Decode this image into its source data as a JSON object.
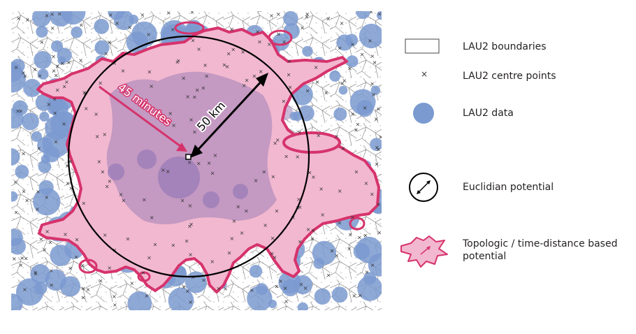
{
  "map": {
    "labels": {
      "euclidean_radius": "50 km",
      "time_distance": "45 minutes"
    },
    "colors": {
      "lau2_data": "#7b9ad0",
      "potential_fill": "#f2b8cf",
      "potential_outline": "#d6336c",
      "overlap": "#9f7fb8",
      "boundaries": "#808080",
      "circle": "#000000"
    }
  },
  "legend": {
    "items": [
      {
        "id": "boundaries",
        "label": "LAU2 boundaries",
        "icon": "rectangle-outline-icon"
      },
      {
        "id": "centres",
        "label": "LAU2 centre points",
        "icon": "x-marker-icon"
      },
      {
        "id": "data",
        "label": "LAU2 data",
        "icon": "blue-dot-icon"
      },
      {
        "id": "euclidian",
        "label": "Euclidian potential",
        "icon": "circle-arrow-icon"
      },
      {
        "id": "topologic",
        "label": "Topologic / time-distance based potential",
        "icon": "pink-blob-icon"
      }
    ]
  }
}
